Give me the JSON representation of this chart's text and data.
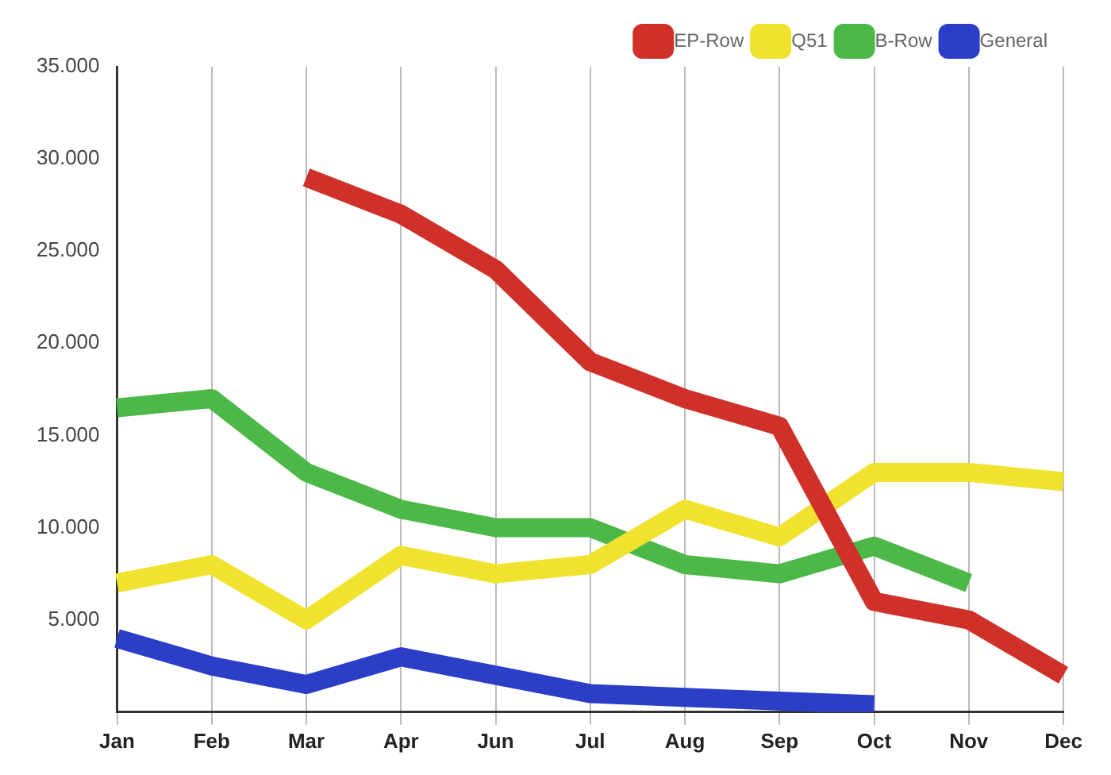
{
  "chart_data": {
    "type": "line",
    "categories": [
      "Jan",
      "Feb",
      "Mar",
      "Apr",
      "Jun",
      "Jul",
      "Aug",
      "Sep",
      "Oct",
      "Nov",
      "Dec"
    ],
    "series": [
      {
        "name": "EP-Row",
        "color": "#d0302a",
        "values": [
          null,
          null,
          29000,
          27000,
          24000,
          19000,
          17000,
          15500,
          6000,
          5000,
          2000
        ]
      },
      {
        "name": "Q51",
        "color": "#f2e230",
        "values": [
          7000,
          8000,
          5000,
          8500,
          7500,
          8000,
          11000,
          9500,
          13000,
          13000,
          12500
        ]
      },
      {
        "name": "B-Row",
        "color": "#4cb848",
        "values": [
          16500,
          17000,
          13000,
          11000,
          10000,
          10000,
          8000,
          7500,
          9000,
          7000,
          null
        ]
      },
      {
        "name": "General",
        "color": "#2a3ec8",
        "values": [
          4000,
          2500,
          1500,
          3000,
          2000,
          1000,
          800,
          600,
          400,
          null,
          null
        ]
      }
    ],
    "ylim": [
      0,
      35000
    ],
    "yticks": [
      {
        "value": 5000,
        "label": "5.000"
      },
      {
        "value": 10000,
        "label": "10.000"
      },
      {
        "value": 15000,
        "label": "15.000"
      },
      {
        "value": 20000,
        "label": "20.000"
      },
      {
        "value": 25000,
        "label": "25.000"
      },
      {
        "value": 30000,
        "label": "30.000"
      },
      {
        "value": 35000,
        "label": "35.000"
      }
    ],
    "grid": "x",
    "legend": "top right",
    "marker": "none",
    "line_style": "solid"
  }
}
